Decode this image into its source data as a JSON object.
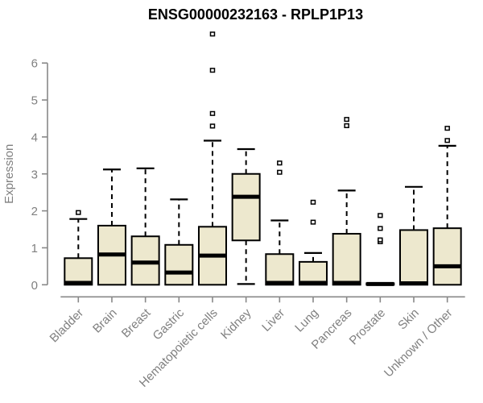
{
  "page": {
    "background": "#FFFFFF"
  },
  "chart_data": {
    "type": "boxplot",
    "title": "ENSG00000232163 - RPLP1P13",
    "xlabel": "",
    "ylabel": "Expression",
    "ylim": [
      0,
      6
    ],
    "yticks": [
      0,
      1,
      2,
      3,
      4,
      5,
      6
    ],
    "grid": false,
    "legend": "none",
    "categories": [
      "Bladder",
      "Brain",
      "Breast",
      "Gastric",
      "Hematopoietic cells",
      "Kidney",
      "Liver",
      "Lung",
      "Pancreas",
      "Prostate",
      "Skin",
      "Unknown / Other"
    ],
    "series": [
      {
        "category": "Bladder",
        "low": 0,
        "q1": 0,
        "median": 0.05,
        "q3": 0.72,
        "high": 1.78,
        "outliers": [
          1.95
        ]
      },
      {
        "category": "Brain",
        "low": 0,
        "q1": 0,
        "median": 0.82,
        "q3": 1.6,
        "high": 3.12,
        "outliers": []
      },
      {
        "category": "Breast",
        "low": 0,
        "q1": 0,
        "median": 0.6,
        "q3": 1.31,
        "high": 3.15,
        "outliers": []
      },
      {
        "category": "Gastric",
        "low": 0,
        "q1": 0,
        "median": 0.33,
        "q3": 1.08,
        "high": 2.31,
        "outliers": []
      },
      {
        "category": "Hematopoietic cells",
        "low": 0,
        "q1": 0,
        "median": 0.79,
        "q3": 1.57,
        "high": 3.9,
        "outliers": [
          4.29,
          4.63,
          5.8,
          6.78
        ]
      },
      {
        "category": "Kidney",
        "low": 0.02,
        "q1": 1.2,
        "median": 2.38,
        "q3": 3.0,
        "high": 3.67,
        "outliers": []
      },
      {
        "category": "Liver",
        "low": 0,
        "q1": 0,
        "median": 0.05,
        "q3": 0.83,
        "high": 1.74,
        "outliers": [
          3.04,
          3.29
        ]
      },
      {
        "category": "Lung",
        "low": 0,
        "q1": 0,
        "median": 0.05,
        "q3": 0.62,
        "high": 0.86,
        "outliers": [
          1.69,
          2.23
        ]
      },
      {
        "category": "Pancreas",
        "low": 0,
        "q1": 0,
        "median": 0.05,
        "q3": 1.38,
        "high": 2.55,
        "outliers": [
          4.3,
          4.47
        ]
      },
      {
        "category": "Prostate",
        "low": 0,
        "q1": 0,
        "median": 0.02,
        "q3": 0.04,
        "high": 0.04,
        "outliers": [
          1.16,
          1.21,
          1.52,
          1.87
        ]
      },
      {
        "category": "Skin",
        "low": 0,
        "q1": 0,
        "median": 0.04,
        "q3": 1.48,
        "high": 2.65,
        "outliers": []
      },
      {
        "category": "Unknown / Other",
        "low": 0,
        "q1": 0,
        "median": 0.5,
        "q3": 1.53,
        "high": 3.76,
        "outliers": [
          3.9,
          4.23
        ]
      }
    ],
    "colors": {
      "box_fill": "#EDE8CE",
      "box_border": "#000000",
      "median": "#000000",
      "whisker": "#000000",
      "axis_line": "#888888",
      "axis_text": "#808080",
      "title_text": "#000000"
    }
  }
}
